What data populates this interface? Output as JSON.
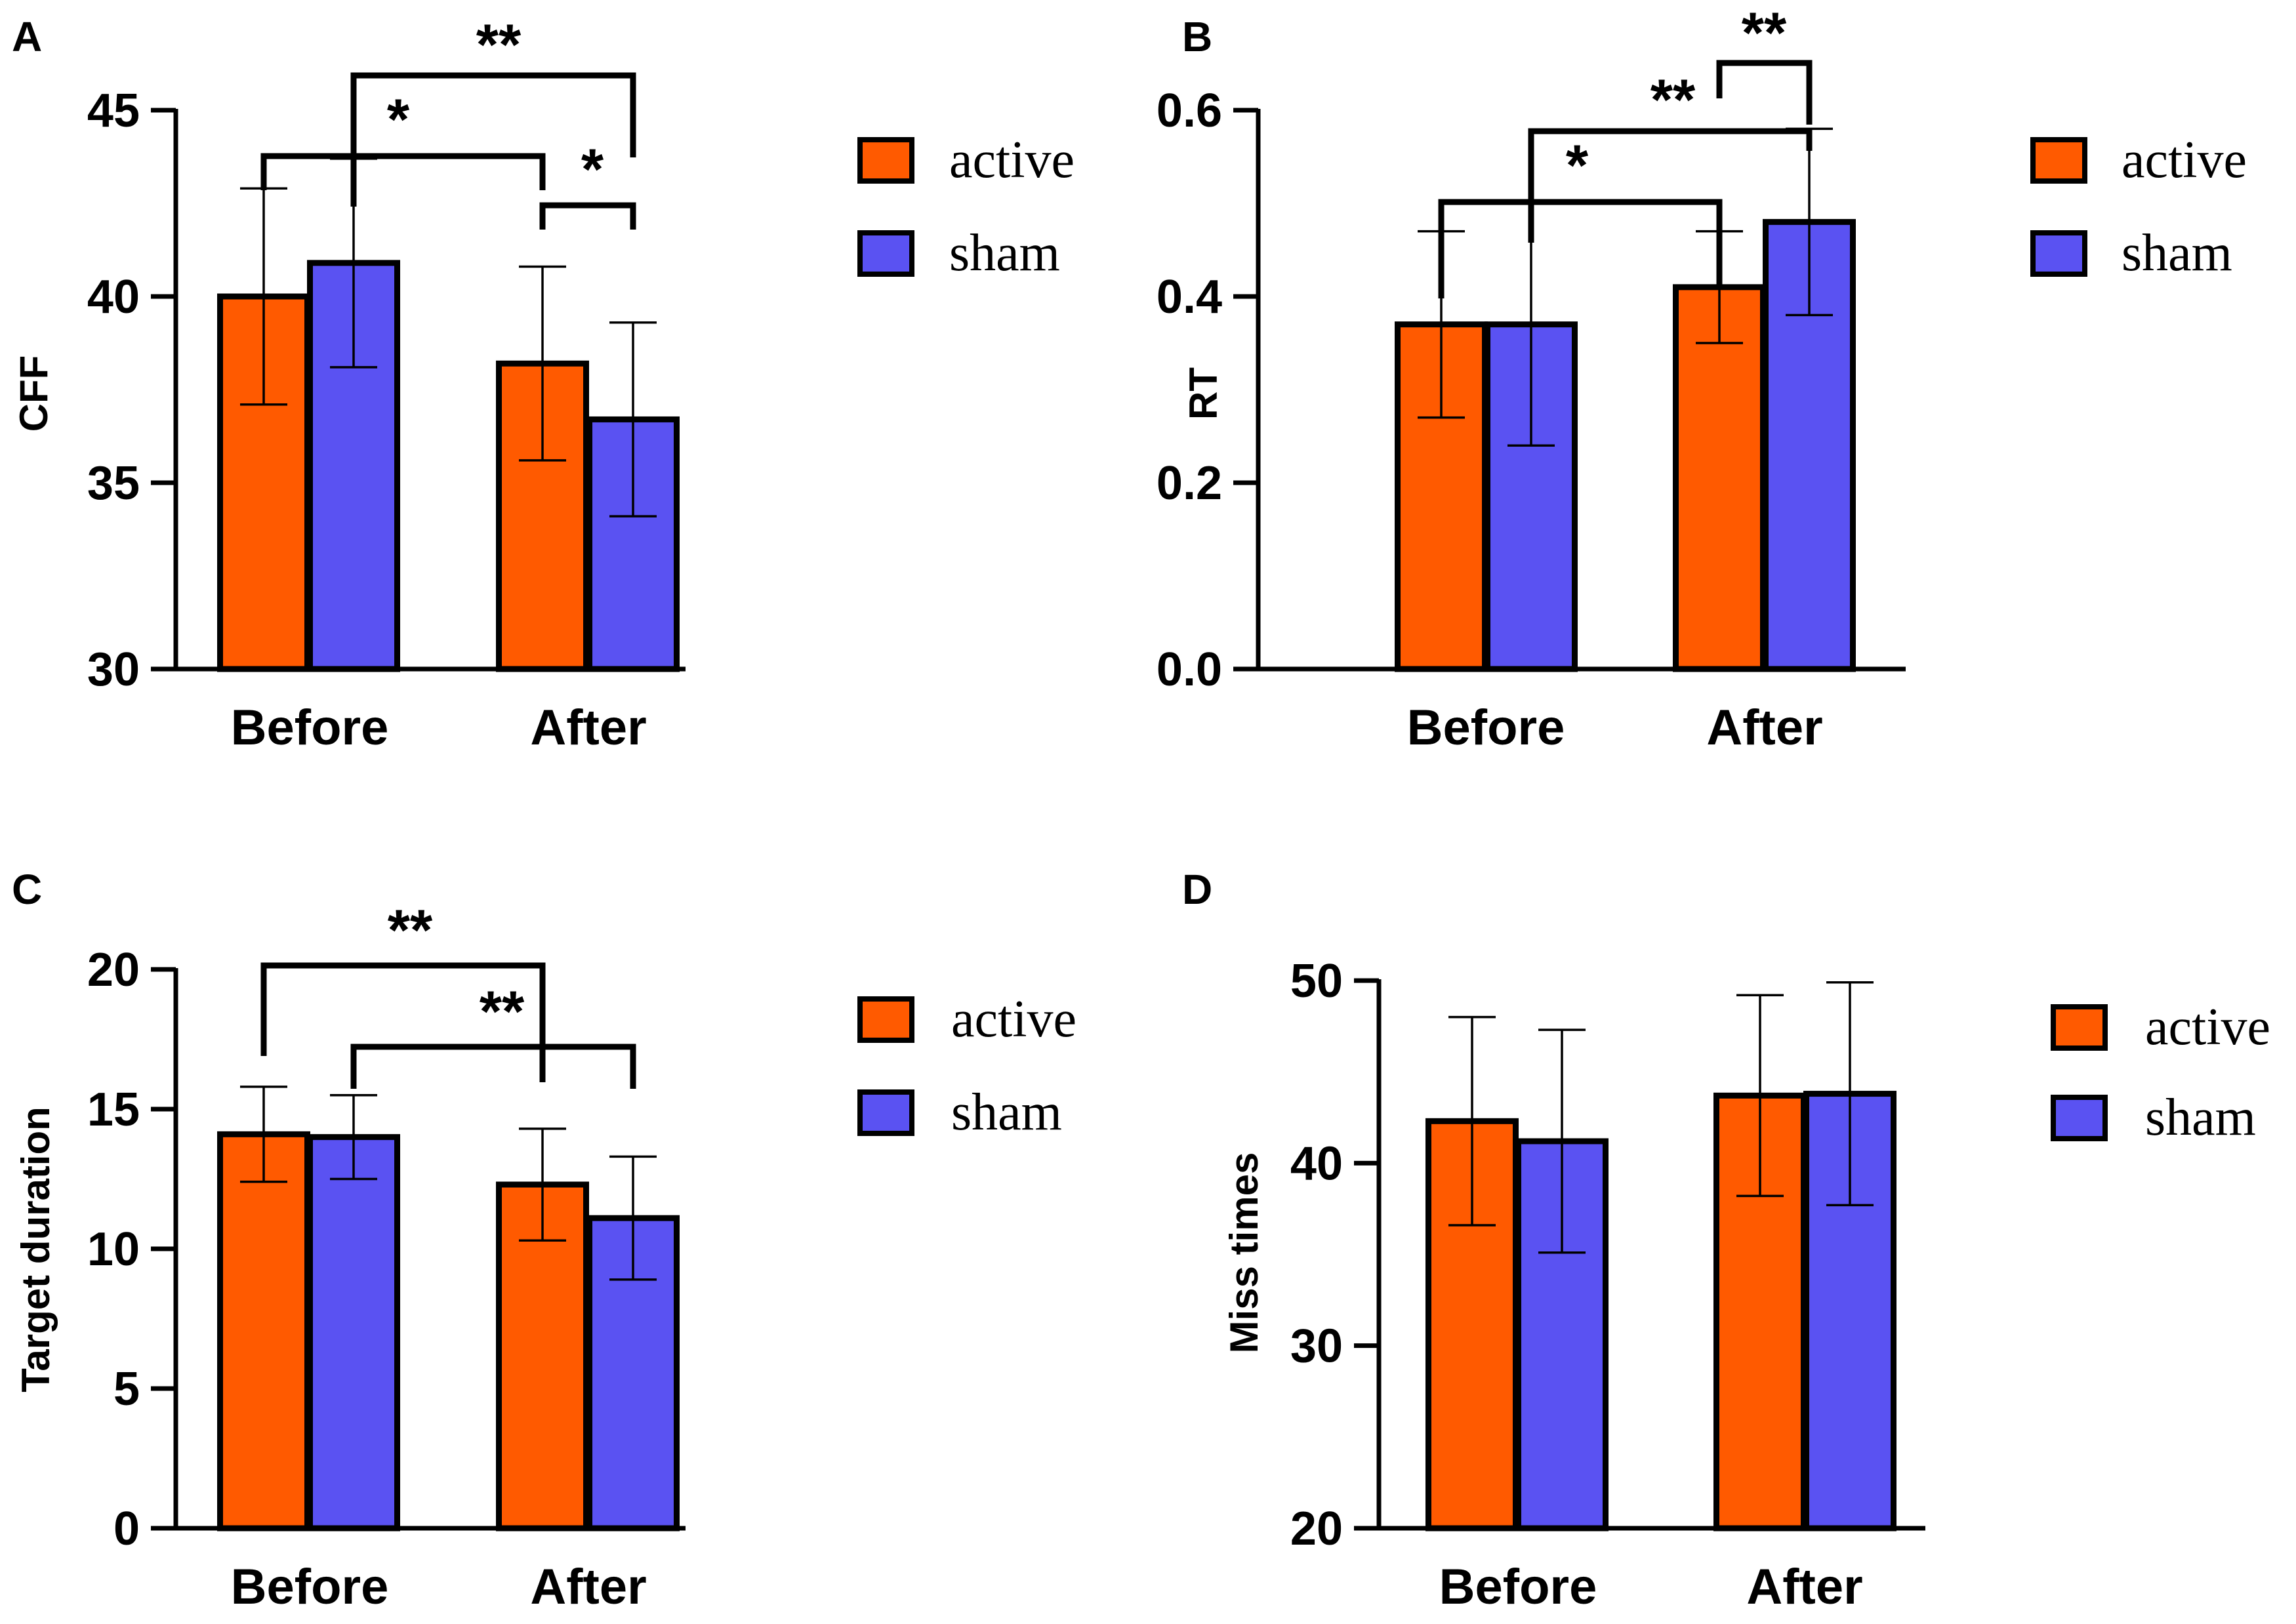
{
  "series_colors": {
    "active": "#ff5a00",
    "sham": "#5a52f2"
  },
  "legend": {
    "active_label": "active",
    "sham_label": "sham"
  },
  "chart_data": [
    {
      "panel": "A",
      "type": "bar",
      "ylabel": "CFF",
      "categories": [
        "Before",
        "After"
      ],
      "ylim": [
        30,
        45
      ],
      "yticks": [
        "30",
        "35",
        "40",
        "45"
      ],
      "series": [
        {
          "name": "active",
          "values": [
            40.0,
            38.2
          ],
          "errors": [
            2.9,
            2.6
          ]
        },
        {
          "name": "sham",
          "values": [
            40.9,
            36.7
          ],
          "errors": [
            2.8,
            2.6
          ]
        }
      ],
      "significance": [
        {
          "label": "**",
          "from": "sham-Before",
          "to": "sham-After"
        },
        {
          "label": "*",
          "from": "active-Before",
          "to": "active-After"
        },
        {
          "label": "*",
          "from": "active-After",
          "to": "sham-After"
        }
      ]
    },
    {
      "panel": "B",
      "type": "bar",
      "ylabel": "RT",
      "categories": [
        "Before",
        "After"
      ],
      "ylim": [
        0.0,
        0.6
      ],
      "yticks": [
        "0.0",
        "0.2",
        "0.4",
        "0.6"
      ],
      "series": [
        {
          "name": "active",
          "values": [
            0.37,
            0.41
          ],
          "errors": [
            0.1,
            0.06
          ]
        },
        {
          "name": "sham",
          "values": [
            0.37,
            0.48
          ],
          "errors": [
            0.13,
            0.1
          ]
        }
      ],
      "significance": [
        {
          "label": "**",
          "from": "active-After",
          "to": "sham-After"
        },
        {
          "label": "**",
          "from": "sham-Before",
          "to": "sham-After"
        },
        {
          "label": "*",
          "from": "active-Before",
          "to": "active-After"
        }
      ]
    },
    {
      "panel": "C",
      "type": "bar",
      "ylabel": "Target duration",
      "categories": [
        "Before",
        "After"
      ],
      "ylim": [
        0,
        20
      ],
      "yticks": [
        "0",
        "5",
        "10",
        "15",
        "20"
      ],
      "series": [
        {
          "name": "active",
          "values": [
            14.1,
            12.3
          ],
          "errors": [
            1.7,
            2.0
          ]
        },
        {
          "name": "sham",
          "values": [
            14.0,
            11.1
          ],
          "errors": [
            1.5,
            2.2
          ]
        }
      ],
      "significance": [
        {
          "label": "**",
          "from": "active-Before",
          "to": "active-After"
        },
        {
          "label": "**",
          "from": "sham-Before",
          "to": "sham-After"
        }
      ]
    },
    {
      "panel": "D",
      "type": "bar",
      "ylabel": "Miss times",
      "categories": [
        "Before",
        "After"
      ],
      "ylim": [
        20,
        50
      ],
      "yticks": [
        "20",
        "30",
        "40",
        "50"
      ],
      "series": [
        {
          "name": "active",
          "values": [
            42.3,
            43.7
          ],
          "errors": [
            5.7,
            5.5
          ]
        },
        {
          "name": "sham",
          "values": [
            41.2,
            43.8
          ],
          "errors": [
            6.1,
            6.1
          ]
        }
      ],
      "significance": []
    }
  ]
}
